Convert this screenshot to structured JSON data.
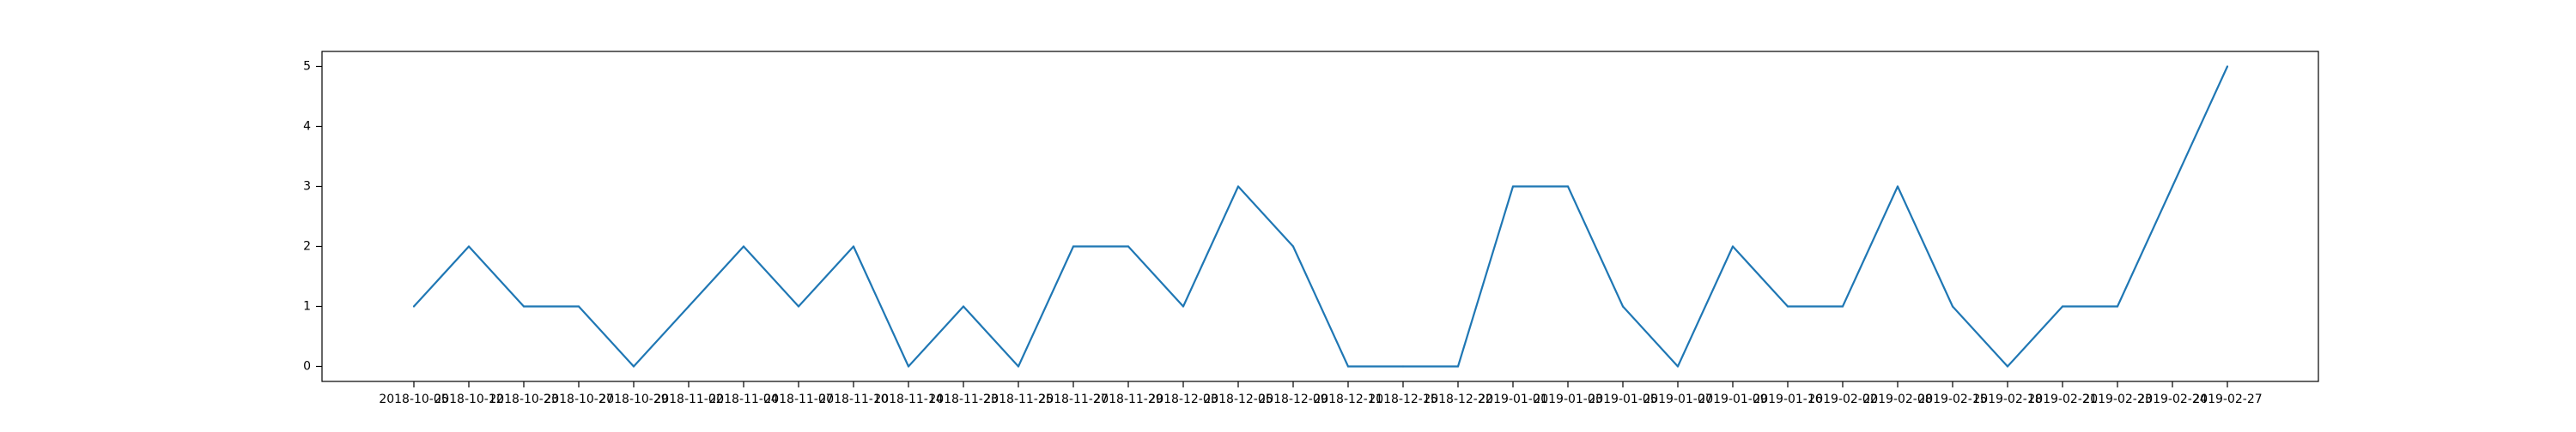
{
  "chart_data": {
    "type": "line",
    "title": "",
    "xlabel": "",
    "ylabel": "",
    "grid": false,
    "legend": "none",
    "ylim": [
      -0.25,
      5.25
    ],
    "yticks": [
      0,
      1,
      2,
      3,
      4,
      5
    ],
    "line_color": "#1f77b4",
    "x": [
      "2018-10-05",
      "2018-10-12",
      "2018-10-23",
      "2018-10-27",
      "2018-10-29",
      "2018-11-02",
      "2018-11-04",
      "2018-11-07",
      "2018-11-10",
      "2018-11-14",
      "2018-11-23",
      "2018-11-25",
      "2018-11-27",
      "2018-11-29",
      "2018-12-03",
      "2018-12-05",
      "2018-12-09",
      "2018-12-11",
      "2018-12-15",
      "2018-12-22",
      "2019-01-01",
      "2019-01-03",
      "2019-01-05",
      "2019-01-07",
      "2019-01-09",
      "2019-01-16",
      "2019-02-02",
      "2019-02-08",
      "2019-02-15",
      "2019-02-18",
      "2019-02-21",
      "2019-02-23",
      "2019-02-24",
      "2019-02-27"
    ],
    "series": [
      {
        "values": [
          1,
          2,
          1,
          1,
          0,
          1,
          2,
          1,
          2,
          0,
          1,
          0,
          2,
          2,
          1,
          3,
          2,
          0,
          0,
          0,
          3,
          3,
          1,
          0,
          2,
          1,
          1,
          3,
          1,
          0,
          1,
          1,
          3,
          5
        ]
      }
    ]
  }
}
